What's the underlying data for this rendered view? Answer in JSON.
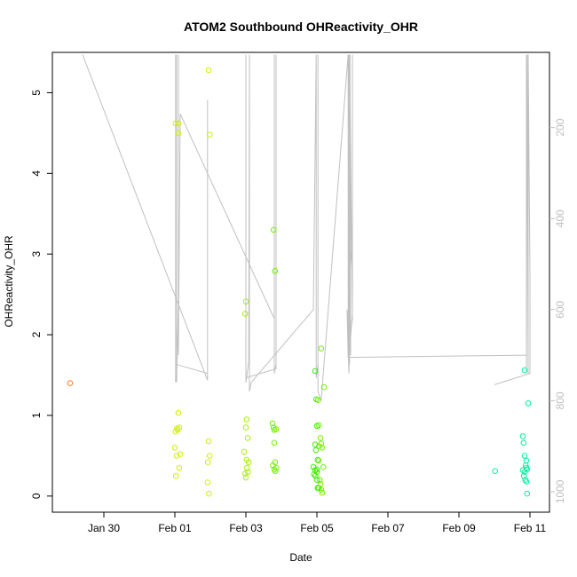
{
  "chart_data": {
    "type": "scatter",
    "title": "ATOM2 Southbound OHReactivity_OHR",
    "xlabel": "Date",
    "ylabel": "OHReactivity_OHR",
    "x_ticks": [
      "Jan 30",
      "Feb 01",
      "Feb 03",
      "Feb 05",
      "Feb 07",
      "Feb 09",
      "Feb 11"
    ],
    "x_tick_days": [
      -2,
      0,
      2,
      4,
      6,
      8,
      10
    ],
    "xlim_days": [
      -3.45,
      10.55
    ],
    "y_ticks": [
      "0",
      "1",
      "2",
      "3",
      "4",
      "5"
    ],
    "ylim": [
      -0.2,
      5.5
    ],
    "y2_ticks": [
      "200",
      "400",
      "600",
      "800",
      "1000"
    ],
    "y2_values": [
      200,
      400,
      600,
      800,
      1000
    ],
    "y2lim": [
      1045,
      35
    ],
    "grid": false,
    "colors": {
      "axis": "#000000",
      "secondary_axis": "#bebebe",
      "track_line": "#c0c0c0"
    },
    "series": [
      {
        "color": "#ff7a1f",
        "points": [
          [
            -2.95,
            1.4
          ]
        ]
      },
      {
        "color": "#d0f000",
        "points": [
          [
            0.0,
            0.6
          ],
          [
            0.02,
            0.8
          ],
          [
            0.05,
            0.5
          ],
          [
            0.08,
            0.82
          ],
          [
            0.1,
            1.03
          ],
          [
            0.12,
            0.85
          ],
          [
            0.03,
            0.25
          ],
          [
            0.12,
            0.35
          ],
          [
            0.15,
            0.52
          ],
          [
            0.06,
            0.84
          ],
          [
            0.02,
            4.62
          ],
          [
            0.1,
            4.62
          ],
          [
            0.1,
            4.5
          ],
          [
            0.95,
            5.28
          ],
          [
            0.98,
            4.48
          ],
          [
            0.95,
            0.68
          ],
          [
            0.98,
            0.5
          ],
          [
            0.93,
            0.42
          ],
          [
            0.92,
            0.17
          ],
          [
            0.96,
            0.03
          ]
        ]
      },
      {
        "color": "#a8f000",
        "points": [
          [
            1.95,
            0.55
          ],
          [
            2.0,
            0.85
          ],
          [
            2.02,
            0.95
          ],
          [
            2.05,
            0.72
          ],
          [
            2.02,
            0.45
          ],
          [
            2.08,
            0.42
          ],
          [
            2.03,
            0.35
          ],
          [
            1.98,
            0.28
          ],
          [
            2.06,
            0.3
          ],
          [
            2.0,
            0.23
          ],
          [
            2.0,
            2.41
          ],
          [
            1.98,
            2.26
          ]
        ]
      },
      {
        "color": "#74f000",
        "points": [
          [
            2.75,
            0.9
          ],
          [
            2.8,
            0.82
          ],
          [
            2.85,
            0.83
          ],
          [
            2.78,
            0.85
          ],
          [
            2.8,
            0.66
          ],
          [
            2.82,
            0.42
          ],
          [
            2.76,
            0.38
          ],
          [
            2.8,
            0.33
          ],
          [
            2.86,
            0.35
          ],
          [
            2.83,
            0.31
          ],
          [
            2.78,
            3.3
          ],
          [
            2.82,
            2.79
          ],
          [
            4.05,
            0.88
          ],
          [
            4.1,
            0.72
          ],
          [
            4.12,
            0.65
          ],
          [
            4.06,
            0.62
          ],
          [
            4.15,
            0.6
          ],
          [
            4.05,
            0.44
          ],
          [
            4.18,
            0.36
          ],
          [
            4.08,
            0.2
          ],
          [
            4.1,
            0.15
          ],
          [
            4.12,
            0.08
          ],
          [
            4.15,
            0.04
          ],
          [
            4.2,
            1.35
          ],
          [
            4.03,
            1.19
          ],
          [
            4.12,
            1.83
          ]
        ]
      },
      {
        "color": "#40f000",
        "points": [
          [
            3.95,
            1.55
          ],
          [
            3.98,
            1.2
          ],
          [
            4.0,
            0.87
          ],
          [
            3.95,
            0.64
          ],
          [
            3.97,
            0.57
          ],
          [
            4.02,
            0.45
          ],
          [
            3.9,
            0.36
          ],
          [
            3.95,
            0.32
          ],
          [
            4.0,
            0.33
          ],
          [
            3.92,
            0.27
          ],
          [
            3.96,
            0.25
          ],
          [
            4.0,
            0.2
          ],
          [
            4.05,
            0.1
          ],
          [
            4.02,
            0.1
          ],
          [
            4.0,
            0.3
          ]
        ]
      },
      {
        "color": "#00f0a0",
        "points": [
          [
            9.02,
            0.31
          ],
          [
            9.85,
            1.56
          ],
          [
            9.95,
            1.15
          ],
          [
            9.8,
            0.74
          ],
          [
            9.82,
            0.66
          ],
          [
            9.9,
            0.44
          ],
          [
            9.85,
            0.5
          ],
          [
            9.88,
            0.38
          ],
          [
            9.9,
            0.35
          ],
          [
            9.92,
            0.33
          ],
          [
            9.85,
            0.3
          ],
          [
            9.8,
            0.32
          ],
          [
            9.83,
            0.25
          ],
          [
            9.87,
            0.2
          ],
          [
            9.9,
            0.18
          ],
          [
            9.92,
            0.03
          ]
        ]
      }
    ],
    "track": [
      [
        -2.6,
        40
      ],
      [
        0.92,
        755
      ],
      [
        0.92,
        140
      ],
      [
        0.92,
        740
      ],
      [
        0.02,
        720
      ],
      [
        0.02,
        40
      ],
      [
        0.02,
        760
      ],
      [
        0.05,
        740
      ],
      [
        0.05,
        40
      ],
      [
        0.05,
        760
      ],
      [
        0.1,
        580
      ],
      [
        0.1,
        40
      ],
      [
        0.1,
        700
      ],
      [
        0.15,
        170
      ],
      [
        2.8,
        620
      ],
      [
        2.8,
        40
      ],
      [
        2.8,
        740
      ],
      [
        2.85,
        720
      ],
      [
        2.85,
        40
      ],
      [
        2.85,
        730
      ],
      [
        2.0,
        750
      ],
      [
        2.0,
        40
      ],
      [
        2.0,
        760
      ],
      [
        2.08,
        715
      ],
      [
        2.1,
        40
      ],
      [
        2.1,
        780
      ],
      [
        2.15,
        760
      ],
      [
        3.9,
        600
      ],
      [
        3.98,
        40
      ],
      [
        3.98,
        750
      ],
      [
        4.03,
        720
      ],
      [
        4.03,
        40
      ],
      [
        4.03,
        780
      ],
      [
        4.12,
        800
      ],
      [
        4.88,
        40
      ],
      [
        4.88,
        690
      ],
      [
        4.9,
        40
      ],
      [
        4.9,
        680
      ],
      [
        5.0,
        620
      ],
      [
        5.0,
        40
      ],
      [
        5.0,
        520
      ],
      [
        4.95,
        470
      ],
      [
        4.93,
        40
      ],
      [
        4.95,
        700
      ],
      [
        4.88,
        40
      ],
      [
        4.88,
        690
      ],
      [
        4.9,
        740
      ],
      [
        4.92,
        690
      ],
      [
        5.0,
        610
      ],
      [
        4.92,
        40
      ],
      [
        4.92,
        720
      ],
      [
        4.85,
        600
      ],
      [
        4.88,
        705
      ],
      [
        9.9,
        700
      ],
      [
        9.9,
        40
      ],
      [
        9.9,
        740
      ],
      [
        9.92,
        40
      ],
      [
        9.95,
        740
      ],
      [
        9.95,
        40
      ],
      [
        10.0,
        520
      ],
      [
        10.0,
        740
      ],
      [
        9.0,
        765
      ]
    ]
  }
}
